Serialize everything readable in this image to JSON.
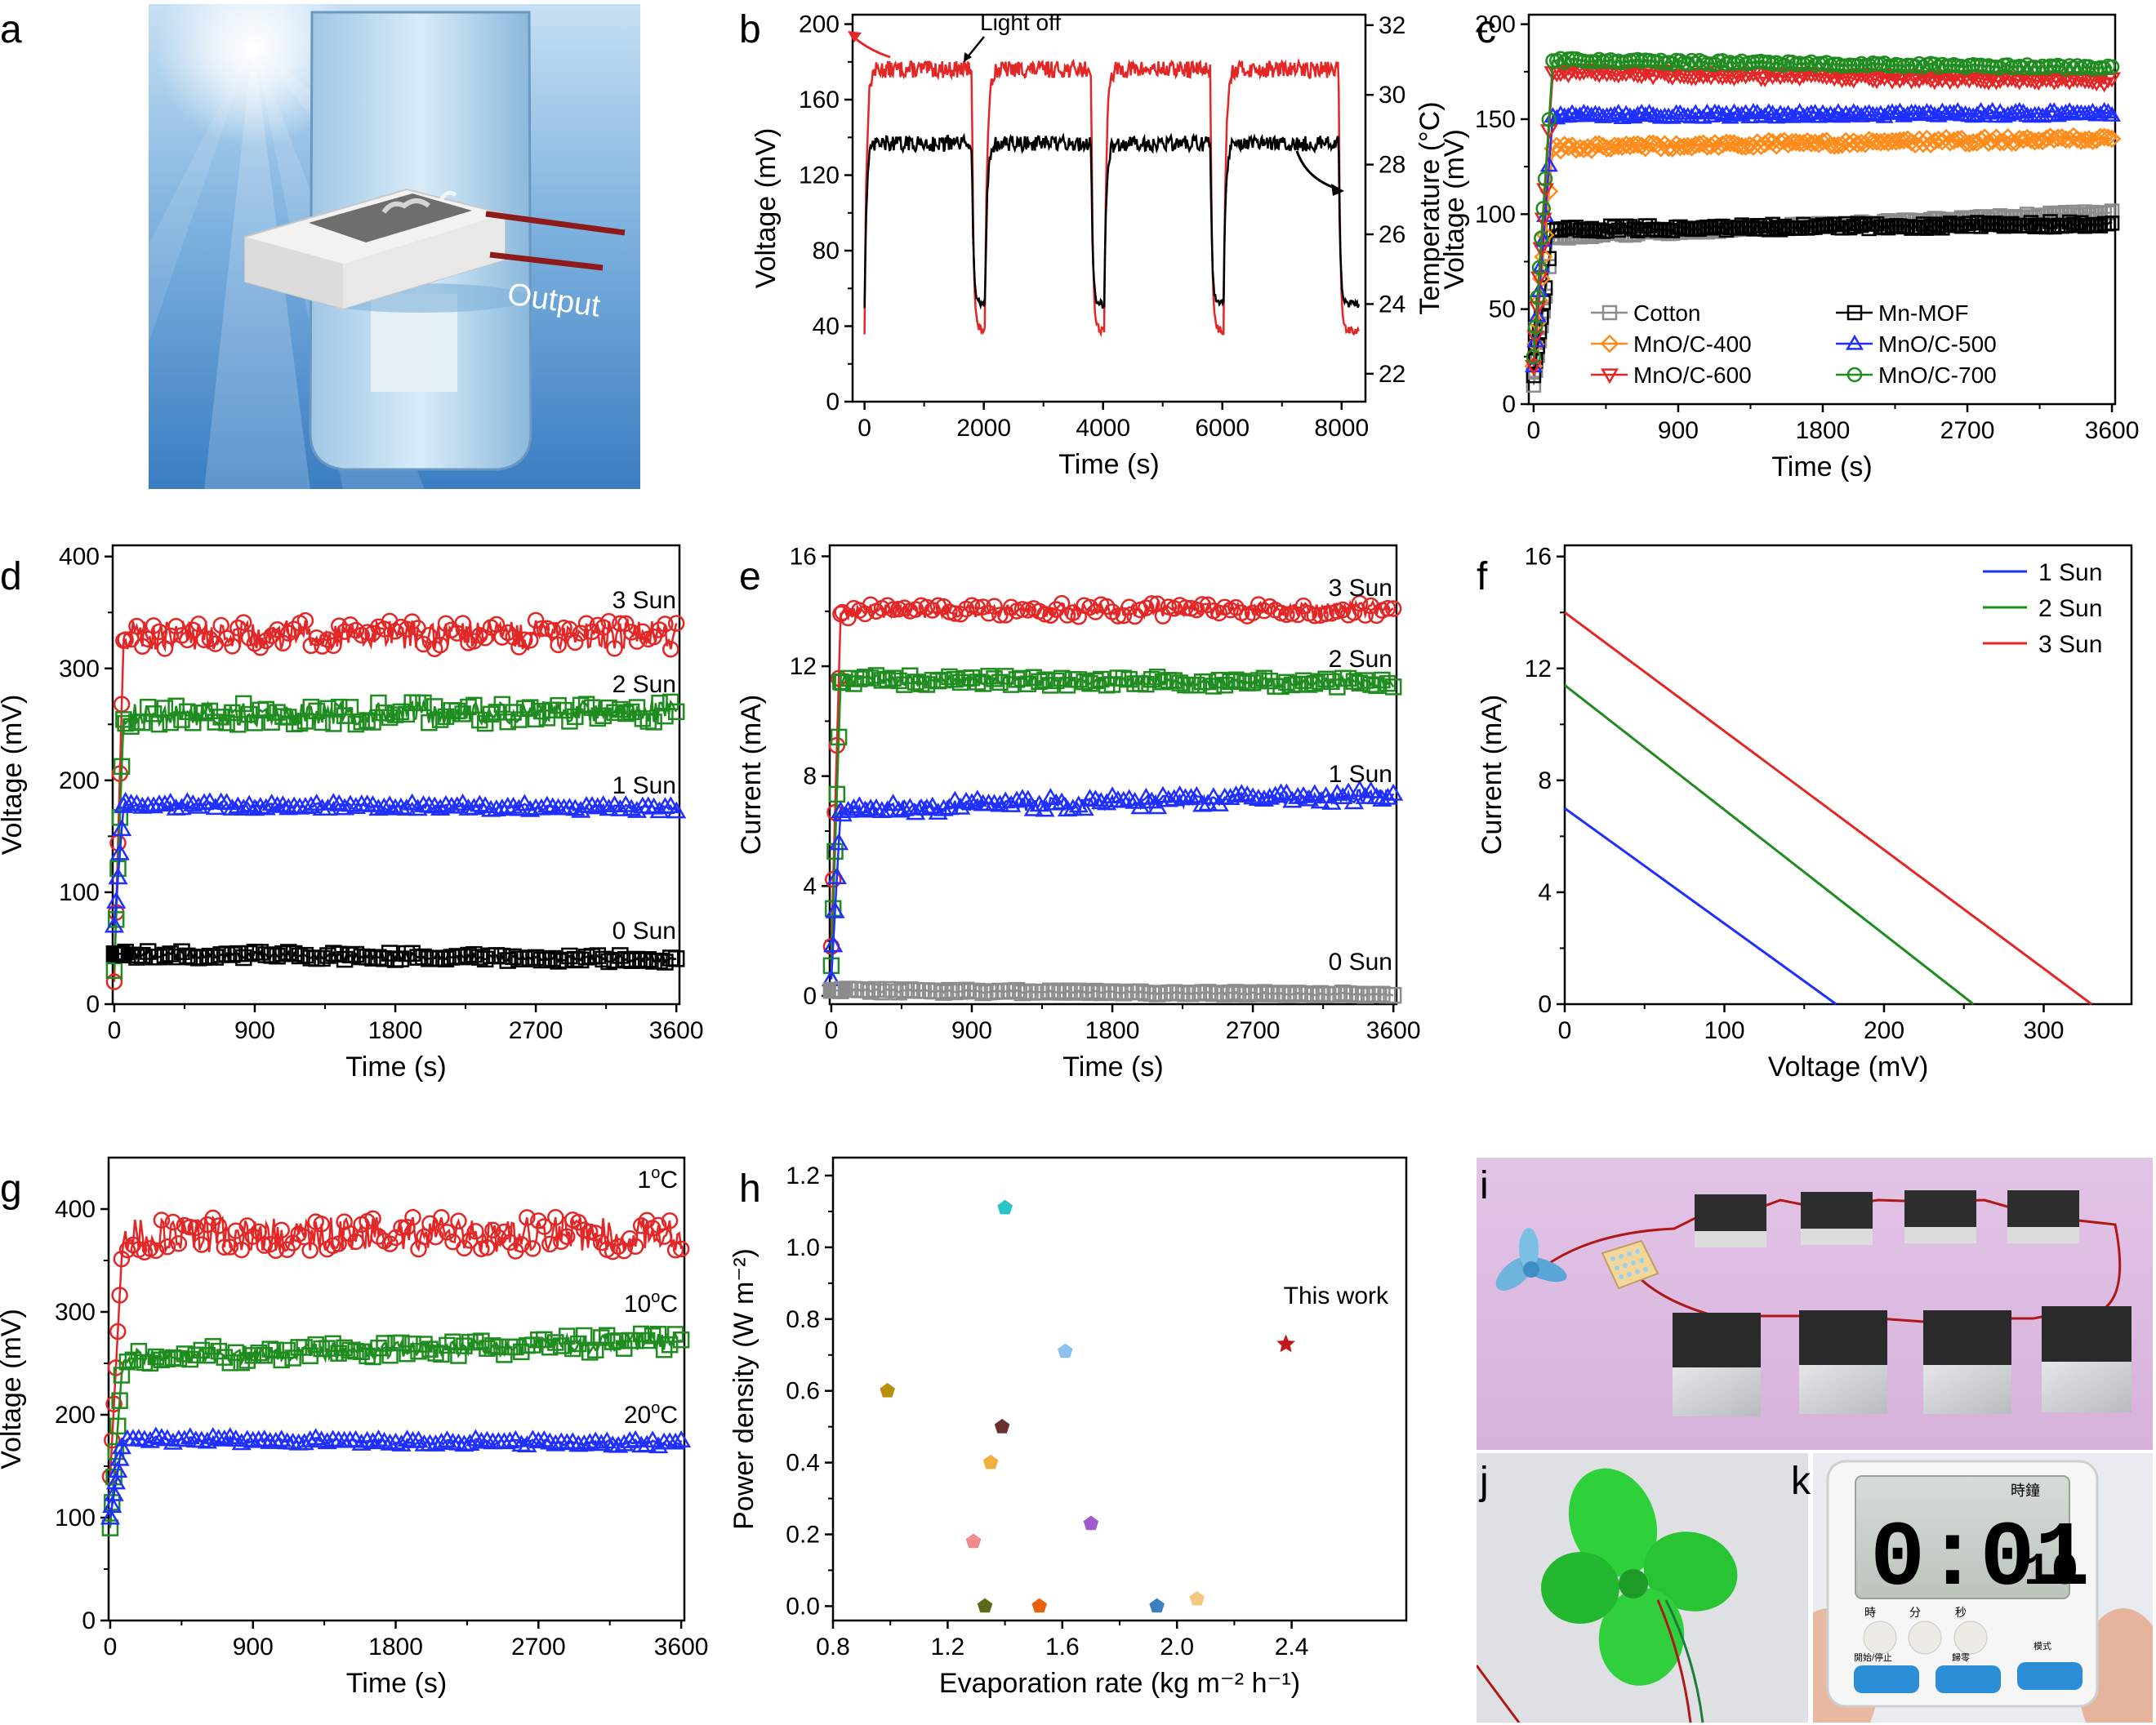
{
  "chart_data": [
    {
      "panel": "a",
      "type": "other",
      "texts": {
        "output": "Output"
      },
      "colors": {
        "sky_top": "#b9d7ef",
        "sky_bottom": "#3f84c7",
        "wire": "#8e1b1b"
      }
    },
    {
      "panel": "b",
      "type": "line",
      "xlabel": "Time (s)",
      "ylabel": "Voltage (mV)",
      "y2label": "Temperature (°C)",
      "xlim": [
        -200,
        8400
      ],
      "ylim": [
        0,
        205
      ],
      "y2lim": [
        21.2,
        32.3
      ],
      "xticks": [
        0,
        2000,
        4000,
        6000,
        8000
      ],
      "yticks": [
        0,
        40,
        80,
        120,
        160,
        200
      ],
      "y2ticks": [
        22,
        24,
        26,
        28,
        30,
        32
      ],
      "annotation": "Light off",
      "series": [
        {
          "color": "#e32626",
          "axis": "left",
          "base": 176,
          "low": 38,
          "on": [
            [
              0,
              1800
            ],
            [
              2020,
              3800
            ],
            [
              4020,
              5800
            ],
            [
              6020,
              7950
            ]
          ],
          "x_end": 8300,
          "x": [
            0,
            1800,
            1900,
            2020,
            3800,
            3900,
            4020,
            5800,
            5900,
            6020,
            7950,
            8050,
            8300
          ],
          "values": [
            35,
            176,
            40,
            172,
            176,
            38,
            174,
            176,
            40,
            172,
            176,
            40,
            40
          ]
        },
        {
          "color": "#000000",
          "axis": "right",
          "base": 28.6,
          "low": 24.0,
          "on": [
            [
              0,
              1800
            ],
            [
              2020,
              3800
            ],
            [
              4020,
              5800
            ],
            [
              6020,
              7950
            ]
          ],
          "x_end": 8300,
          "x": [
            0,
            1800,
            1900,
            2020,
            3800,
            3900,
            4020,
            5800,
            5900,
            6020,
            7950,
            8050,
            8300
          ],
          "values": [
            24.2,
            28.6,
            23.8,
            28.4,
            28.6,
            23.7,
            28.5,
            28.6,
            23.6,
            28.4,
            28.6,
            24.0,
            24.0
          ]
        }
      ]
    },
    {
      "panel": "c",
      "type": "line",
      "xlabel": "Time (s)",
      "ylabel": "Voltage (mV)",
      "xlim": [
        -30,
        3620
      ],
      "ylim": [
        0,
        205
      ],
      "xticks": [
        0,
        900,
        1800,
        2700,
        3600
      ],
      "yticks": [
        0,
        50,
        100,
        150,
        200
      ],
      "series": [
        {
          "name": "Cotton",
          "marker": "square",
          "color": "#8c8c8c",
          "start": 10,
          "plateau": 88,
          "end": 101
        },
        {
          "name": "Mn-MOF",
          "marker": "square",
          "color": "#000000",
          "start": 15,
          "plateau": 92,
          "end": 95
        },
        {
          "name": "MnO/C-400",
          "marker": "diamond",
          "color": "#ff8c1a",
          "start": 20,
          "plateau": 135,
          "end": 140
        },
        {
          "name": "MnO/C-500",
          "marker": "triangle-up",
          "color": "#1f2fff",
          "start": 20,
          "plateau": 152,
          "end": 153
        },
        {
          "name": "MnO/C-600",
          "marker": "triangle-down",
          "color": "#e32626",
          "start": 20,
          "plateau": 175,
          "end": 170
        },
        {
          "name": "MnO/C-700",
          "marker": "circle",
          "color": "#1f8c1f",
          "start": 25,
          "plateau": 181,
          "end": 177
        }
      ]
    },
    {
      "panel": "d",
      "type": "line",
      "xlabel": "Time (s)",
      "ylabel": "Voltage (mV)",
      "xlim": [
        -10,
        3620
      ],
      "ylim": [
        0,
        410
      ],
      "xticks": [
        0,
        900,
        1800,
        2700,
        3600
      ],
      "yticks": [
        0,
        100,
        200,
        300,
        400
      ],
      "series": [
        {
          "name": "3 Sun",
          "marker": "circle",
          "color": "#e32626",
          "start": 20,
          "plateau": 330,
          "end": 330
        },
        {
          "name": "2 Sun",
          "marker": "square",
          "color": "#1f8c1f",
          "start": 30,
          "plateau": 258,
          "end": 262
        },
        {
          "name": "1 Sun",
          "marker": "triangle-up",
          "color": "#1f2fff",
          "start": 70,
          "plateau": 178,
          "end": 175
        },
        {
          "name": "0 Sun",
          "marker": "square",
          "color": "#000000",
          "start": 45,
          "plateau": 45,
          "end": 40
        }
      ]
    },
    {
      "panel": "e",
      "type": "line",
      "xlabel": "Time (s)",
      "ylabel": "Current (mA)",
      "xlim": [
        -10,
        3620
      ],
      "ylim": [
        -0.3,
        16.4
      ],
      "xticks": [
        0,
        900,
        1800,
        2700,
        3600
      ],
      "yticks": [
        0,
        4,
        8,
        12,
        16
      ],
      "series": [
        {
          "name": "3 Sun",
          "marker": "circle",
          "color": "#e32626",
          "start": 1.8,
          "plateau": 14.0,
          "end": 14.1
        },
        {
          "name": "2 Sun",
          "marker": "square",
          "color": "#1f8c1f",
          "start": 1.1,
          "plateau": 11.5,
          "end": 11.4
        },
        {
          "name": "1 Sun",
          "marker": "triangle-up",
          "color": "#1f2fff",
          "start": 0.6,
          "plateau": 6.8,
          "end": 7.3
        },
        {
          "name": "0 Sun",
          "marker": "square",
          "color": "#8c8c8c",
          "start": 0.2,
          "plateau": 0.2,
          "end": 0.05
        }
      ]
    },
    {
      "panel": "f",
      "type": "line",
      "xlabel": "Voltage (mV)",
      "ylabel": "Current (mA)",
      "xlim": [
        0,
        355
      ],
      "ylim": [
        0,
        16.4
      ],
      "xticks": [
        0,
        100,
        200,
        300
      ],
      "yticks": [
        0,
        4,
        8,
        12,
        16
      ],
      "series": [
        {
          "name": "1 Sun",
          "color": "#1f2fff",
          "x": [
            0,
            170
          ],
          "values": [
            7.0,
            0
          ]
        },
        {
          "name": "2 Sun",
          "color": "#1f8c1f",
          "x": [
            0,
            256
          ],
          "values": [
            11.4,
            0
          ]
        },
        {
          "name": "3 Sun",
          "color": "#e32626",
          "x": [
            0,
            330
          ],
          "values": [
            14.0,
            0
          ]
        }
      ]
    },
    {
      "panel": "g",
      "type": "line",
      "xlabel": "Time (s)",
      "ylabel": "Voltage (mV)",
      "xlim": [
        -10,
        3620
      ],
      "ylim": [
        0,
        450
      ],
      "xticks": [
        0,
        900,
        1800,
        2700,
        3600
      ],
      "yticks": [
        0,
        100,
        200,
        300,
        400
      ],
      "series": [
        {
          "name": "1 °C",
          "marker": "circle",
          "color": "#e32626",
          "start": 140,
          "plateau": 375,
          "end": 375
        },
        {
          "name": "10 °C",
          "marker": "square",
          "color": "#1f8c1f",
          "start": 90,
          "plateau": 255,
          "end": 272
        },
        {
          "name": "20 °C",
          "marker": "triangle-up",
          "color": "#1f2fff",
          "start": 100,
          "plateau": 176,
          "end": 172
        }
      ]
    },
    {
      "panel": "h",
      "type": "scatter",
      "xlabel": "Evaporation rate (kg m⁻² h⁻¹)",
      "ylabel": "Power density (W m⁻²)",
      "xlim": [
        0.8,
        2.8
      ],
      "ylim": [
        -0.04,
        1.25
      ],
      "xticks": [
        0.8,
        1.2,
        1.6,
        2.0,
        2.4
      ],
      "yticks": [
        0.0,
        0.2,
        0.4,
        0.6,
        0.8,
        1.0,
        1.2
      ],
      "annotation": "This work",
      "points": [
        {
          "x": 1.4,
          "y": 1.11,
          "color": "#26c6c6"
        },
        {
          "x": 0.99,
          "y": 0.6,
          "color": "#b8900a"
        },
        {
          "x": 1.61,
          "y": 0.71,
          "color": "#8cc2f0"
        },
        {
          "x": 1.39,
          "y": 0.5,
          "color": "#6a3030"
        },
        {
          "x": 1.35,
          "y": 0.4,
          "color": "#f0b040"
        },
        {
          "x": 1.7,
          "y": 0.23,
          "color": "#a05ad0"
        },
        {
          "x": 1.29,
          "y": 0.18,
          "color": "#f08c8c"
        },
        {
          "x": 1.33,
          "y": 0.0,
          "color": "#5a6a1a"
        },
        {
          "x": 1.52,
          "y": 0.0,
          "color": "#e8620e"
        },
        {
          "x": 1.93,
          "y": 0.0,
          "color": "#3a7fc0"
        },
        {
          "x": 2.07,
          "y": 0.02,
          "color": "#f5c880"
        },
        {
          "x": 2.38,
          "y": 0.73,
          "color": "#c01818",
          "marker": "star"
        }
      ]
    },
    {
      "panel": "i",
      "type": "other",
      "colors": {
        "background": "#d9b8de"
      }
    },
    {
      "panel": "j",
      "type": "other",
      "colors": {
        "fan": "#2ed13a"
      }
    },
    {
      "panel": "k",
      "type": "other",
      "display": "0:01",
      "display_small": "10",
      "caption": "時鐘",
      "key_labels": [
        "時",
        "分",
        "秒"
      ],
      "button_labels": [
        "開始/停止",
        "歸零",
        "模式"
      ]
    }
  ]
}
